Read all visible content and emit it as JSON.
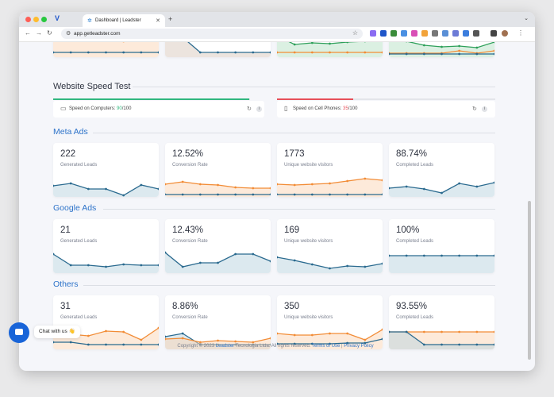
{
  "browser": {
    "tab_title": "Dashboard | Leadster",
    "url": "app.getleadster.com"
  },
  "speed_test": {
    "title": "Website Speed Test",
    "computer_label": "Speed on Computers: ",
    "computer_score": "90",
    "computer_max": "/100",
    "phone_label": "Speed on Cell Phones: ",
    "phone_score": "35",
    "phone_max": "/100",
    "colors": {
      "good": "#31b77f",
      "bad": "#e7505a"
    }
  },
  "colors": {
    "blue": "#2a6a8f",
    "orange": "#f28c36",
    "green": "#2ea05a",
    "section": "#2d73c9"
  },
  "sections": [
    {
      "title": "Meta Ads",
      "cards": [
        {
          "value": "222",
          "label": "Generated Leads"
        },
        {
          "value": "12.52%",
          "label": "Conversion Rate"
        },
        {
          "value": "1773",
          "label": "Unique website visitors"
        },
        {
          "value": "88.74%",
          "label": "Completed Leads"
        }
      ]
    },
    {
      "title": "Google Ads",
      "cards": [
        {
          "value": "21",
          "label": "Generated Leads"
        },
        {
          "value": "12.43%",
          "label": "Conversion Rate"
        },
        {
          "value": "169",
          "label": "Unique website visitors"
        },
        {
          "value": "100%",
          "label": "Completed Leads"
        }
      ]
    },
    {
      "title": "Others",
      "cards": [
        {
          "value": "31",
          "label": "Generated Leads"
        },
        {
          "value": "8.86%",
          "label": "Conversion Rate"
        },
        {
          "value": "350",
          "label": "Unique website visitors"
        },
        {
          "value": "93.55%",
          "label": "Completed Leads"
        }
      ]
    }
  ],
  "footer": {
    "copyright": "Copyright © 2023 ",
    "brand": "Leadster",
    "company": " Tecnologia Ltda. All rights reserved. ",
    "terms": "Terms of Use",
    "sep": " | ",
    "privacy": "Privacy Policy"
  },
  "chat": {
    "label": "Chat with us 👋"
  }
}
